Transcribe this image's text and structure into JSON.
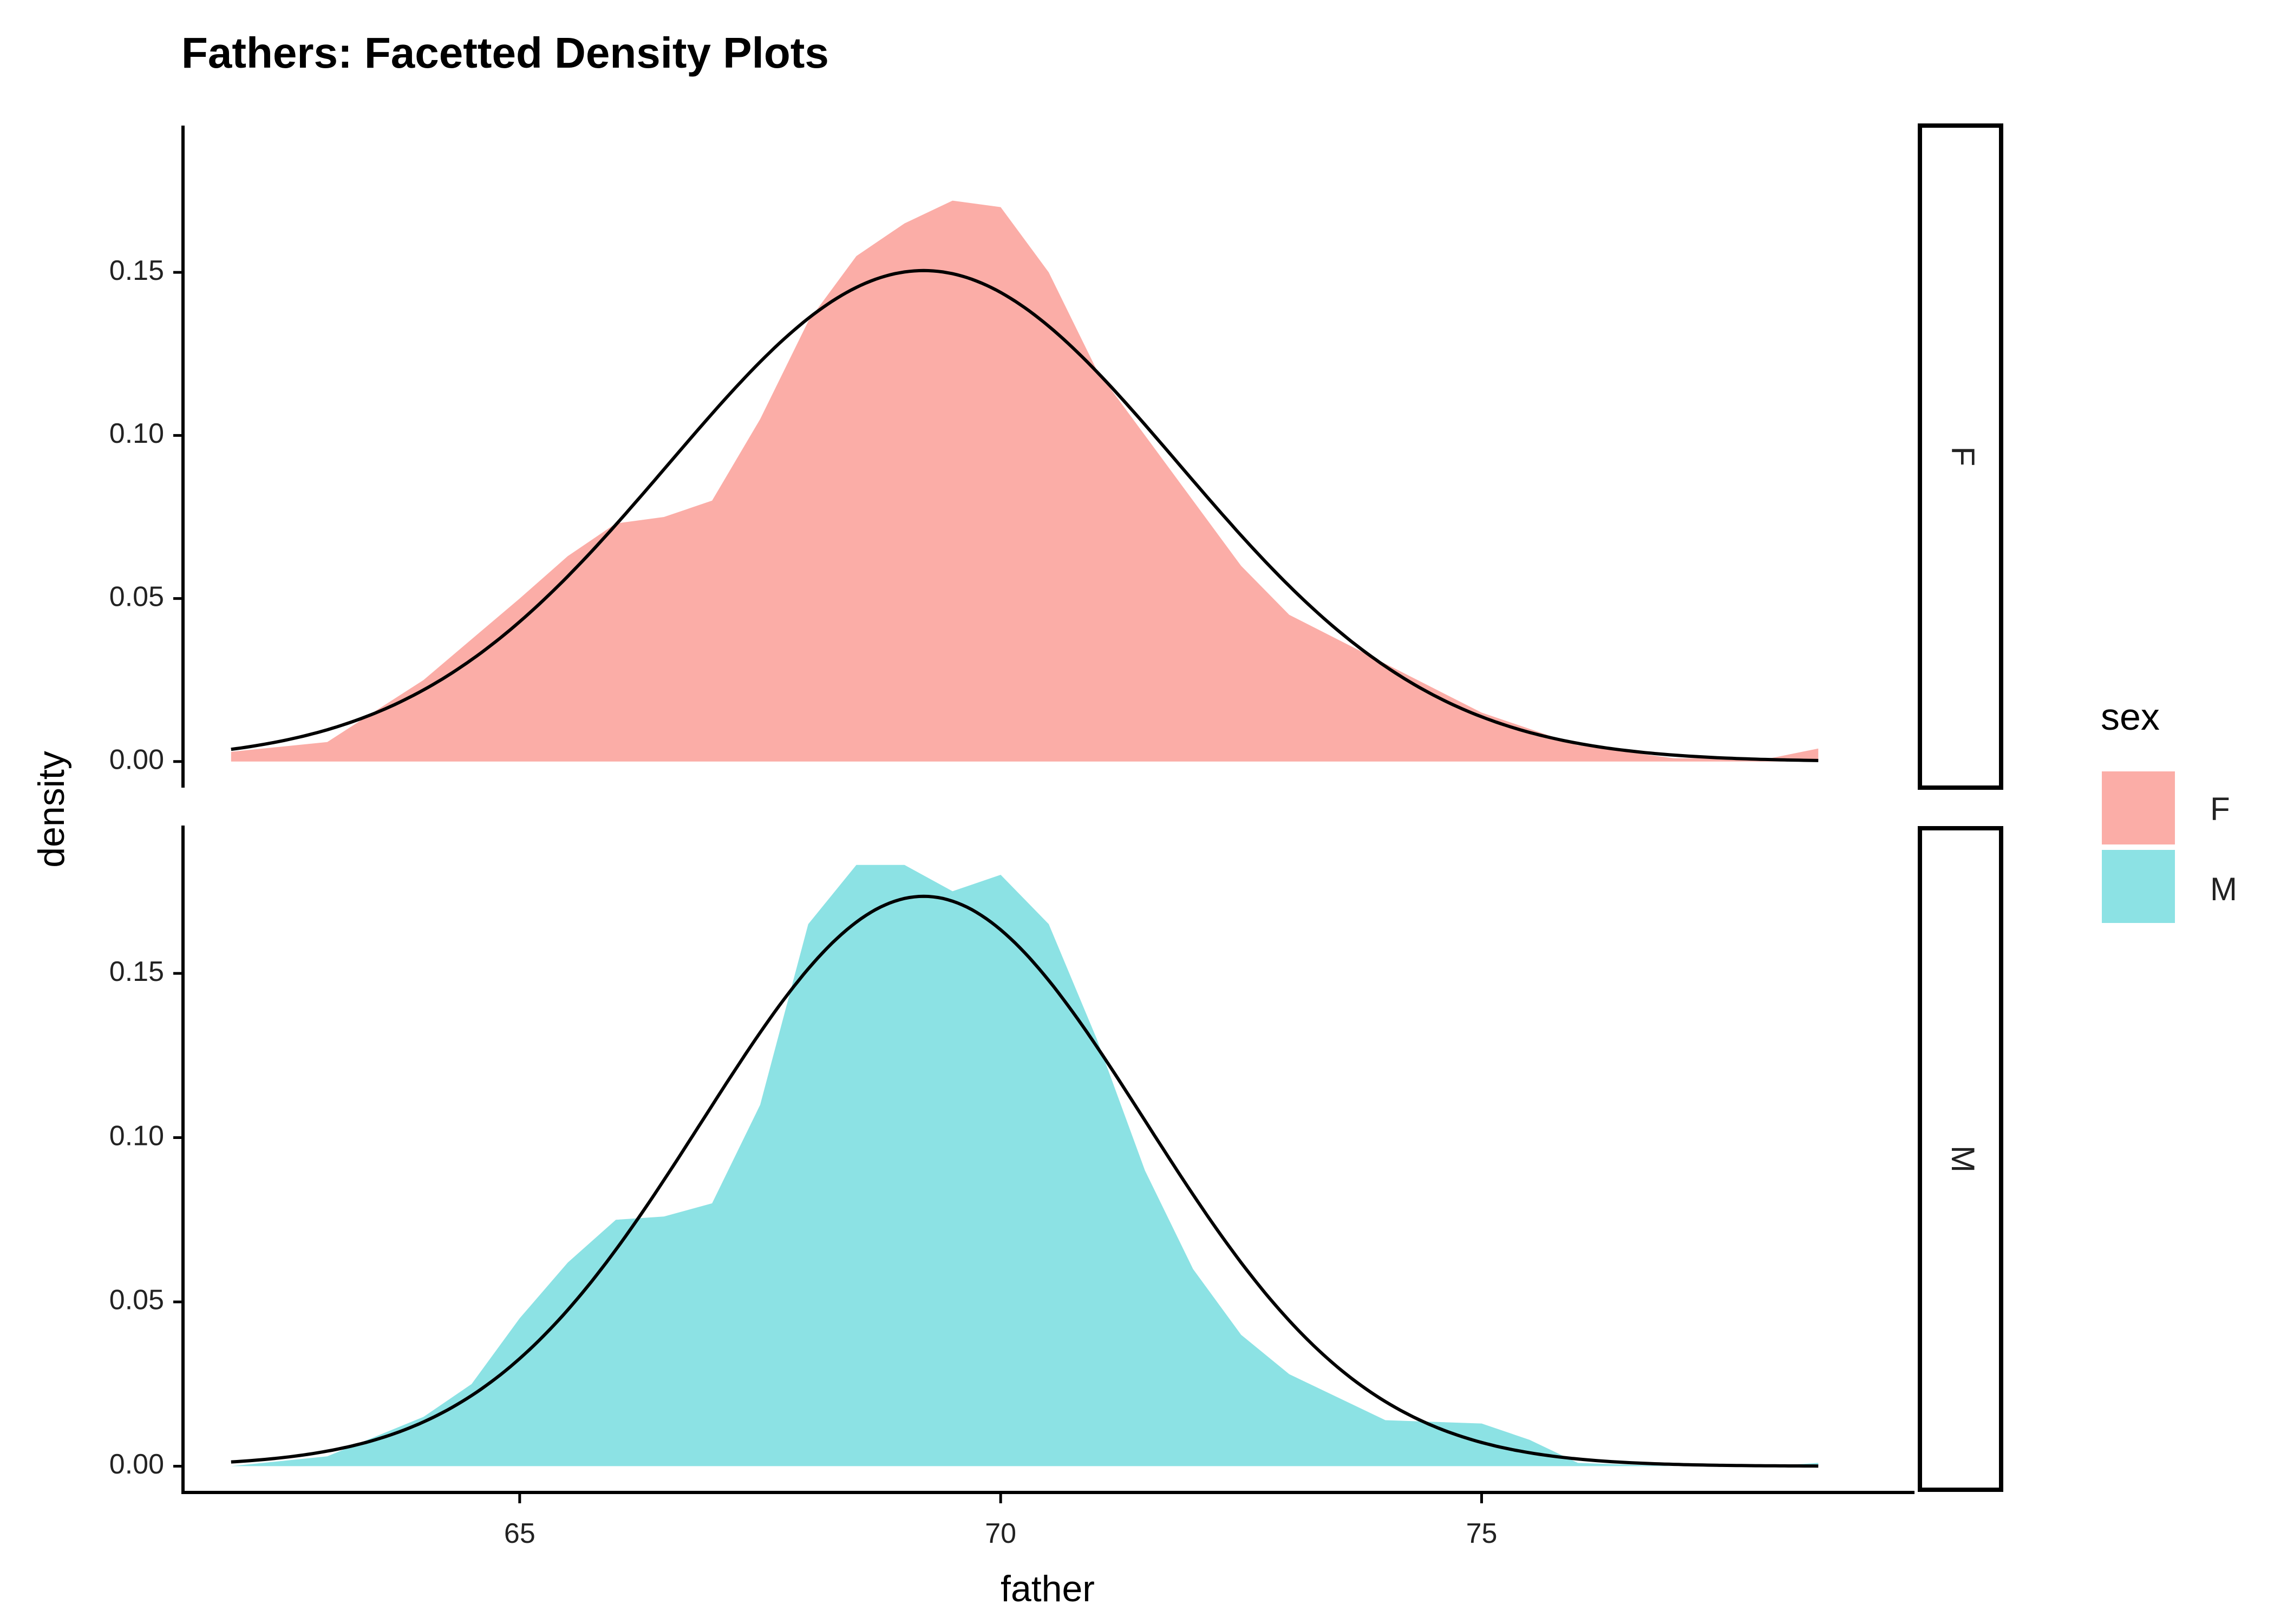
{
  "chart_data": {
    "type": "area",
    "title": "Fathers: Facetted Density Plots",
    "xlabel": "father",
    "ylabel": "density",
    "xlim": [
      61.5,
      79.5
    ],
    "ylim": [
      -0.008,
      0.195
    ],
    "x_ticks": [
      65,
      70,
      75
    ],
    "y_ticks": [
      0.0,
      0.05,
      0.1,
      0.15
    ],
    "y_tick_labels": [
      "0.00",
      "0.05",
      "0.10",
      "0.15"
    ],
    "grid": false,
    "legend": {
      "title": "sex",
      "position": "right",
      "entries": [
        {
          "label": "F",
          "color": "#F8766D"
        },
        {
          "label": "M",
          "color": "#00BFC4"
        }
      ]
    },
    "facets": [
      {
        "strip_label": "F",
        "fill_color": "#F8766D",
        "density": {
          "x": [
            62,
            63,
            64,
            65,
            65.5,
            66,
            66.5,
            67,
            67.5,
            68,
            68.5,
            69,
            69.5,
            70,
            70.5,
            71,
            71.5,
            72,
            72.5,
            73,
            74,
            75,
            76,
            77,
            78,
            78.5
          ],
          "y": [
            0.003,
            0.006,
            0.025,
            0.05,
            0.063,
            0.073,
            0.075,
            0.08,
            0.105,
            0.135,
            0.155,
            0.165,
            0.172,
            0.17,
            0.15,
            0.12,
            0.1,
            0.08,
            0.06,
            0.045,
            0.03,
            0.015,
            0.005,
            0.001,
            0.001,
            0.004
          ]
        },
        "normal_curve": {
          "mean": 69.2,
          "sd": 2.65
        }
      },
      {
        "strip_label": "M",
        "fill_color": "#00BFC4",
        "density": {
          "x": [
            62,
            63,
            64,
            64.5,
            65,
            65.5,
            66,
            66.5,
            67,
            67.5,
            68,
            68.5,
            69,
            69.5,
            70,
            70.5,
            71,
            71.5,
            72,
            72.5,
            73,
            74,
            75,
            75.5,
            76,
            77,
            78,
            78.5
          ],
          "y": [
            0.0,
            0.003,
            0.015,
            0.025,
            0.045,
            0.062,
            0.075,
            0.076,
            0.08,
            0.11,
            0.165,
            0.183,
            0.183,
            0.175,
            0.18,
            0.165,
            0.13,
            0.09,
            0.06,
            0.04,
            0.028,
            0.014,
            0.013,
            0.008,
            0.001,
            0.0,
            0.0,
            0.001
          ]
        },
        "normal_curve": {
          "mean": 69.2,
          "sd": 2.3
        }
      }
    ]
  },
  "colors": {
    "f_fill": "#F8766D",
    "m_fill": "#00BFC4",
    "curve": "#000000"
  }
}
